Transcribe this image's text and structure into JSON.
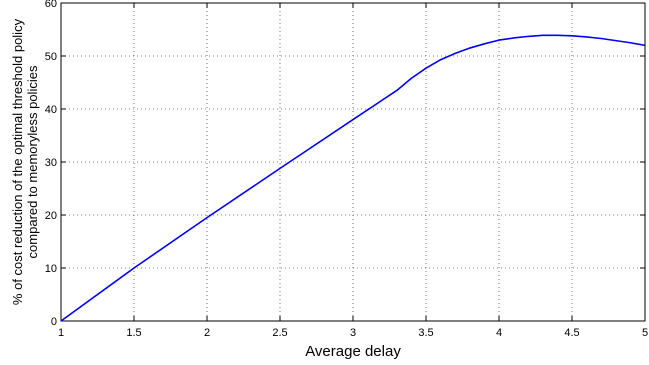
{
  "chart_data": {
    "type": "line",
    "title": "",
    "xlabel": "Average delay",
    "ylabel_lines": [
      "% of cost reduction of the optimal threshold policy",
      "compared to memoryless policies"
    ],
    "xlim": [
      1,
      5
    ],
    "ylim": [
      0,
      60
    ],
    "xticks": [
      1,
      1.5,
      2,
      2.5,
      3,
      3.5,
      4,
      4.5,
      5
    ],
    "xtick_labels": [
      "1",
      "1.5",
      "2",
      "2.5",
      "3",
      "3.5",
      "4",
      "4.5",
      "5"
    ],
    "yticks": [
      0,
      10,
      20,
      30,
      40,
      50,
      60
    ],
    "ytick_labels": [
      "0",
      "10",
      "20",
      "30",
      "40",
      "50",
      "60"
    ],
    "grid": true,
    "series": [
      {
        "color": "#0000ff",
        "x": [
          1,
          1.5,
          2,
          2.5,
          3,
          3.3,
          3.4,
          3.5,
          3.6,
          3.7,
          3.8,
          3.9,
          4.0,
          4.1,
          4.2,
          4.3,
          4.4,
          4.5,
          4.6,
          4.7,
          4.8,
          4.9,
          5.0
        ],
        "y": [
          0,
          10.0,
          19.5,
          28.8,
          38.0,
          43.5,
          45.8,
          47.7,
          49.3,
          50.5,
          51.5,
          52.3,
          53.0,
          53.4,
          53.7,
          53.9,
          53.9,
          53.8,
          53.6,
          53.3,
          52.9,
          52.5,
          52.0
        ]
      }
    ]
  }
}
